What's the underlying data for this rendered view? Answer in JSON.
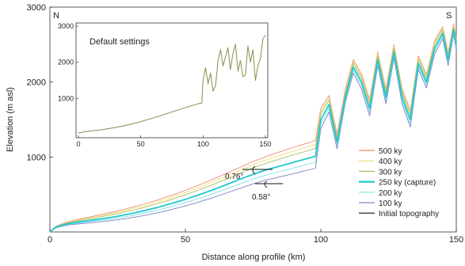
{
  "chart_data": [
    {
      "id": "main",
      "type": "line",
      "xlabel": "Distance along profile (km)",
      "ylabel": "Elevation (m asl)",
      "xlim": [
        0,
        150
      ],
      "ylim": [
        0,
        3000
      ],
      "xticks": [
        0,
        50,
        100,
        150
      ],
      "yticks": [
        1000,
        2000,
        3000
      ],
      "corner_left": "N",
      "corner_right": "S",
      "grid": false,
      "legend_position": "bottom-right",
      "annotations": [
        {
          "label": "0.76°",
          "x": 79,
          "y": 760
        },
        {
          "label": "0.58°",
          "x": 79,
          "y": 540
        }
      ],
      "x": [
        0,
        2,
        4,
        6,
        8,
        10,
        15,
        20,
        25,
        30,
        35,
        40,
        45,
        50,
        55,
        60,
        65,
        70,
        75,
        80,
        85,
        90,
        95,
        98,
        100,
        103,
        106,
        109,
        112,
        115,
        118,
        121,
        124,
        127,
        130,
        133,
        136,
        139,
        142,
        145,
        147,
        149,
        150
      ],
      "base_profile": [
        0,
        60,
        85,
        105,
        118,
        130,
        155,
        180,
        210,
        245,
        285,
        330,
        380,
        435,
        495,
        560,
        630,
        700,
        770,
        830,
        880,
        930,
        980,
        1010,
        1500,
        1700,
        1200,
        1800,
        2200,
        2000,
        1650,
        2300,
        1800,
        2400,
        1800,
        1500,
        2250,
        2000,
        2450,
        2650,
        2300,
        2700,
        2500
      ],
      "series": [
        {
          "name": "500 ky",
          "color": "#f08a7a",
          "width": 0.9,
          "below": [
            0,
            12,
            18,
            24,
            30,
            36,
            48,
            60,
            70,
            80,
            90,
            100,
            110,
            120,
            130,
            140,
            150,
            160,
            170,
            180,
            190,
            200,
            205,
            210,
            150,
            120,
            110,
            100,
            100,
            110,
            120,
            100,
            110,
            100,
            110,
            120,
            100,
            100,
            100,
            90,
            100,
            80,
            90
          ],
          "offset_mode": "rise"
        },
        {
          "name": "400 ky",
          "color": "#f3de6e",
          "width": 0.9,
          "below": [
            0,
            9,
            14,
            18,
            22,
            27,
            36,
            45,
            53,
            60,
            68,
            75,
            83,
            90,
            98,
            105,
            113,
            120,
            128,
            135,
            143,
            150,
            155,
            160,
            110,
            90,
            80,
            75,
            75,
            80,
            90,
            75,
            80,
            75,
            80,
            90,
            75,
            75,
            75,
            70,
            75,
            60,
            70
          ],
          "offset_mode": "rise"
        },
        {
          "name": "300 ky",
          "color": "#a8c060",
          "width": 0.9,
          "below": [
            0,
            6,
            9,
            12,
            15,
            18,
            24,
            30,
            35,
            40,
            45,
            50,
            55,
            60,
            65,
            70,
            75,
            80,
            85,
            90,
            95,
            100,
            103,
            106,
            75,
            60,
            55,
            50,
            50,
            55,
            60,
            50,
            55,
            50,
            55,
            60,
            50,
            50,
            50,
            45,
            50,
            40,
            45
          ],
          "offset_mode": "rise"
        },
        {
          "name": "250 ky (capture)",
          "color": "#21c8cf",
          "width": 1.8,
          "below": [
            0,
            0,
            0,
            0,
            0,
            0,
            0,
            0,
            0,
            0,
            0,
            0,
            0,
            0,
            0,
            0,
            0,
            0,
            0,
            0,
            0,
            0,
            0,
            0,
            0,
            0,
            0,
            0,
            0,
            0,
            0,
            0,
            0,
            0,
            0,
            0,
            0,
            0,
            0,
            0,
            0,
            0,
            0
          ],
          "offset_mode": "rise"
        },
        {
          "name": "200 ky",
          "color": "#7ae0e6",
          "width": 0.9,
          "below": [
            0,
            4,
            6,
            8,
            10,
            12,
            16,
            20,
            24,
            28,
            32,
            36,
            40,
            44,
            48,
            52,
            56,
            60,
            64,
            68,
            72,
            76,
            78,
            80,
            60,
            50,
            45,
            40,
            40,
            45,
            50,
            40,
            45,
            40,
            45,
            50,
            40,
            40,
            40,
            35,
            40,
            30,
            35
          ],
          "offset_mode": "drop"
        },
        {
          "name": "100 ky",
          "color": "#7c7fc2",
          "width": 0.9,
          "below": [
            0,
            8,
            12,
            16,
            20,
            24,
            32,
            40,
            48,
            56,
            64,
            72,
            80,
            88,
            96,
            104,
            112,
            120,
            128,
            136,
            144,
            152,
            156,
            160,
            120,
            100,
            90,
            80,
            80,
            90,
            100,
            80,
            90,
            80,
            90,
            100,
            80,
            80,
            80,
            70,
            80,
            60,
            70
          ],
          "offset_mode": "drop"
        },
        {
          "name": "Initial topography",
          "color": "#111111",
          "width": 0.9,
          "below": [
            0,
            0,
            0,
            0,
            0,
            0,
            0,
            0,
            0,
            0,
            0,
            0,
            0,
            0,
            0,
            0,
            0,
            0,
            0,
            0,
            0,
            0,
            0,
            0,
            0,
            0,
            0,
            0,
            0,
            0,
            0,
            0,
            0,
            0,
            0,
            0,
            0,
            0,
            0,
            0,
            0,
            0,
            0
          ],
          "offset_mode": "hidden"
        }
      ]
    },
    {
      "id": "inset",
      "type": "line",
      "title": "Default settings",
      "xlim": [
        0,
        150
      ],
      "ylim": [
        0,
        3000
      ],
      "xticks": [
        0,
        50,
        100,
        150
      ],
      "yticks": [
        1000,
        2000,
        3000
      ],
      "series": [
        {
          "name": "Default settings",
          "color": "#8a9a5b",
          "width": 1.1,
          "x": [
            0,
            5,
            10,
            20,
            30,
            40,
            50,
            60,
            70,
            80,
            90,
            95,
            97,
            99,
            100,
            102,
            104,
            106,
            108,
            110,
            112,
            114,
            116,
            118,
            120,
            122,
            124,
            126,
            128,
            130,
            132,
            134,
            136,
            138,
            140,
            142,
            144,
            146,
            148,
            150
          ],
          "y": [
            40,
            80,
            100,
            140,
            200,
            270,
            360,
            460,
            570,
            680,
            790,
            840,
            860,
            870,
            1500,
            1850,
            1400,
            1700,
            1200,
            1350,
            2050,
            2350,
            1900,
            2150,
            2400,
            1800,
            2250,
            2500,
            1750,
            2050,
            1600,
            1650,
            2450,
            2000,
            2350,
            1500,
            1900,
            2100,
            2650,
            2750
          ]
        }
      ]
    }
  ]
}
